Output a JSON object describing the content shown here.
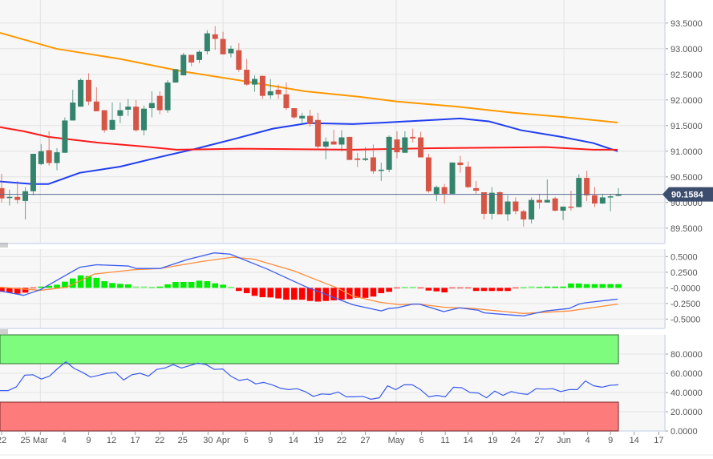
{
  "chart_data": [
    {
      "type": "candlestick",
      "title": "",
      "ylabel": "",
      "ylim": [
        89.2,
        93.95
      ],
      "y_ticks": [
        "93.5000",
        "93.0000",
        "92.5000",
        "92.0000",
        "91.5000",
        "91.0000",
        "90.5000",
        "90.0000",
        "89.5000"
      ],
      "y_tick_values": [
        93.5,
        93.0,
        92.5,
        92.0,
        91.5,
        91.0,
        90.5,
        90.0,
        89.5
      ],
      "last_price": 90.1584,
      "last_price_label": "90.1584",
      "colors": {
        "up": "#34836c",
        "down": "#d65646",
        "last_price": "#3d4d6e",
        "ma_fast": "#1f3df0",
        "ma_mid": "#ff1a1a",
        "ma_slow": "#ff9800"
      },
      "candles_ohlc": [
        [
          90.28,
          90.56,
          90.0,
          90.08
        ],
        [
          90.1,
          90.25,
          89.94,
          90.11
        ],
        [
          90.11,
          90.42,
          89.98,
          90.05
        ],
        [
          90.03,
          90.3,
          89.67,
          90.22
        ],
        [
          90.22,
          90.95,
          90.14,
          90.95
        ],
        [
          90.75,
          91.14,
          90.73,
          91.0
        ],
        [
          91.02,
          91.39,
          90.72,
          90.77
        ],
        [
          90.77,
          91.06,
          90.63,
          90.98
        ],
        [
          90.97,
          91.66,
          90.97,
          91.6
        ],
        [
          91.6,
          92.2,
          91.6,
          91.95
        ],
        [
          91.87,
          92.42,
          91.87,
          92.39
        ],
        [
          92.39,
          92.52,
          91.9,
          91.97
        ],
        [
          91.97,
          92.25,
          91.78,
          91.78
        ],
        [
          91.8,
          91.8,
          91.36,
          91.41
        ],
        [
          91.42,
          91.95,
          91.41,
          91.61
        ],
        [
          91.69,
          91.95,
          91.55,
          91.8
        ],
        [
          91.81,
          92.02,
          91.69,
          91.87
        ],
        [
          91.87,
          92.0,
          91.38,
          91.41
        ],
        [
          91.41,
          91.89,
          91.31,
          91.83
        ],
        [
          91.84,
          92.17,
          91.66,
          91.94
        ],
        [
          92.08,
          92.17,
          91.72,
          91.8
        ],
        [
          91.8,
          92.39,
          91.75,
          92.34
        ],
        [
          92.34,
          92.6,
          92.34,
          92.6
        ],
        [
          92.48,
          92.92,
          92.48,
          92.88
        ],
        [
          92.88,
          92.88,
          92.66,
          92.73
        ],
        [
          92.78,
          92.97,
          92.72,
          92.94
        ],
        [
          92.95,
          93.36,
          92.89,
          93.3
        ],
        [
          93.28,
          93.44,
          92.98,
          93.19
        ],
        [
          93.19,
          93.33,
          92.89,
          92.89
        ],
        [
          92.91,
          93.06,
          92.83,
          93.0
        ],
        [
          92.97,
          93.11,
          92.55,
          92.59
        ],
        [
          92.59,
          92.8,
          92.28,
          92.3
        ],
        [
          92.3,
          92.48,
          92.16,
          92.41
        ],
        [
          92.47,
          92.47,
          92.02,
          92.08
        ],
        [
          92.09,
          92.41,
          92.02,
          92.17
        ],
        [
          92.2,
          92.3,
          92.02,
          92.11
        ],
        [
          92.11,
          92.34,
          91.8,
          91.84
        ],
        [
          91.84,
          91.84,
          91.63,
          91.66
        ],
        [
          91.64,
          91.75,
          91.52,
          91.69
        ],
        [
          91.69,
          91.81,
          91.48,
          91.53
        ],
        [
          91.61,
          91.75,
          91.03,
          91.09
        ],
        [
          91.09,
          91.27,
          90.84,
          91.19
        ],
        [
          91.19,
          91.42,
          91.13,
          91.13
        ],
        [
          91.13,
          91.41,
          91.0,
          91.27
        ],
        [
          91.28,
          91.28,
          90.83,
          90.83
        ],
        [
          90.86,
          90.97,
          90.69,
          90.83
        ],
        [
          90.83,
          91.08,
          90.81,
          90.86
        ],
        [
          90.88,
          91.13,
          90.56,
          90.61
        ],
        [
          90.62,
          90.78,
          90.42,
          90.64
        ],
        [
          90.64,
          91.31,
          90.59,
          91.28
        ],
        [
          91.23,
          91.39,
          90.86,
          90.98
        ],
        [
          90.97,
          91.39,
          90.97,
          91.27
        ],
        [
          91.28,
          91.44,
          91.17,
          91.25
        ],
        [
          91.27,
          91.38,
          90.88,
          90.88
        ],
        [
          90.88,
          90.95,
          90.19,
          90.22
        ],
        [
          90.16,
          90.33,
          90.03,
          90.3
        ],
        [
          90.3,
          90.36,
          89.98,
          90.17
        ],
        [
          90.17,
          90.78,
          90.16,
          90.78
        ],
        [
          90.78,
          90.91,
          90.58,
          90.73
        ],
        [
          90.7,
          90.8,
          90.28,
          90.3
        ],
        [
          90.28,
          90.42,
          90.16,
          90.23
        ],
        [
          90.2,
          90.2,
          89.67,
          89.78
        ],
        [
          89.78,
          90.3,
          89.67,
          90.19
        ],
        [
          90.2,
          90.22,
          89.77,
          89.77
        ],
        [
          89.77,
          90.14,
          89.64,
          90.02
        ],
        [
          90.02,
          90.1,
          89.77,
          89.83
        ],
        [
          89.83,
          89.86,
          89.53,
          89.67
        ],
        [
          89.67,
          90.1,
          89.59,
          90.05
        ],
        [
          90.05,
          90.17,
          89.88,
          90.0
        ],
        [
          90.0,
          90.45,
          90.0,
          90.05
        ],
        [
          90.08,
          90.11,
          89.83,
          89.84
        ],
        [
          89.84,
          89.92,
          89.66,
          89.92
        ],
        [
          89.92,
          90.23,
          89.84,
          89.91
        ],
        [
          89.91,
          90.55,
          89.91,
          90.48
        ],
        [
          90.48,
          90.62,
          90.03,
          90.14
        ],
        [
          90.14,
          90.3,
          89.91,
          89.98
        ],
        [
          89.98,
          90.17,
          89.97,
          90.1
        ],
        [
          90.11,
          90.17,
          89.83,
          90.12
        ],
        [
          90.13,
          90.28,
          90.12,
          90.16
        ]
      ],
      "moving_averages": [
        {
          "name": "ma-slow",
          "color": "#ff9800",
          "points": [
            [
              -0.2,
              93.31
            ],
            [
              6.9,
              93.0
            ],
            [
              15,
              92.8
            ],
            [
              22.8,
              92.56
            ],
            [
              30.2,
              92.38
            ],
            [
              38.3,
              92.17
            ],
            [
              45.4,
              92.06
            ],
            [
              50,
              91.97
            ],
            [
              57.6,
              91.87
            ],
            [
              64.7,
              91.75
            ],
            [
              70.8,
              91.67
            ],
            [
              77.9,
              91.56
            ]
          ]
        },
        {
          "name": "ma-fast",
          "color": "#1f3df0",
          "points": [
            [
              -0.2,
              90.41
            ],
            [
              3.9,
              90.36
            ],
            [
              5.9,
              90.36
            ],
            [
              9.9,
              90.58
            ],
            [
              15,
              90.7
            ],
            [
              20.1,
              90.89
            ],
            [
              24.6,
              91.05
            ],
            [
              29.2,
              91.23
            ],
            [
              34.3,
              91.44
            ],
            [
              38.8,
              91.55
            ],
            [
              44.4,
              91.53
            ],
            [
              48.5,
              91.56
            ],
            [
              54.6,
              91.61
            ],
            [
              58,
              91.64
            ],
            [
              61.7,
              91.58
            ],
            [
              65.7,
              91.41
            ],
            [
              70.8,
              91.28
            ],
            [
              74.8,
              91.16
            ],
            [
              77.9,
              91.0
            ]
          ]
        },
        {
          "name": "ma-mid",
          "color": "#ff1a1a",
          "points": [
            [
              -0.2,
              91.47
            ],
            [
              2.8,
              91.39
            ],
            [
              5.9,
              91.28
            ],
            [
              12,
              91.17
            ],
            [
              18.1,
              91.09
            ],
            [
              22.1,
              91.03
            ],
            [
              30.2,
              91.05
            ],
            [
              44.4,
              91.03
            ],
            [
              54.6,
              91.06
            ],
            [
              68.8,
              91.08
            ],
            [
              74.8,
              91.03
            ],
            [
              77.9,
              91.03
            ]
          ]
        }
      ]
    },
    {
      "type": "bar",
      "name": "MACD",
      "ylim": [
        -0.65,
        0.62
      ],
      "y_ticks": [
        "0.5000",
        "0.2500",
        "-0.0000",
        "-0.2500",
        "-0.5000"
      ],
      "y_tick_values": [
        0.5,
        0.25,
        0,
        -0.25,
        -0.5
      ],
      "histogram": [
        -0.064,
        -0.077,
        -0.094,
        -0.077,
        -0.01,
        0.02,
        0.034,
        0.05,
        0.098,
        0.15,
        0.2,
        0.19,
        0.16,
        0.107,
        0.077,
        0.064,
        0.056,
        0.01,
        0.01,
        0.005,
        0.02,
        0.056,
        0.094,
        0.094,
        0.094,
        0.115,
        0.107,
        0.073,
        0.05,
        0.005,
        -0.05,
        -0.085,
        -0.128,
        -0.15,
        -0.154,
        -0.17,
        -0.19,
        -0.19,
        -0.19,
        -0.21,
        -0.22,
        -0.21,
        -0.2,
        -0.19,
        -0.18,
        -0.16,
        -0.16,
        -0.14,
        -0.085,
        -0.064,
        -0.01,
        0.005,
        0.005,
        -0.01,
        -0.043,
        -0.056,
        -0.073,
        -0.01,
        -0.01,
        -0.01,
        -0.05,
        -0.05,
        -0.05,
        -0.05,
        -0.05,
        -0.01,
        0.003,
        0.01,
        0.015,
        0.02,
        0.02,
        0.02,
        0.07,
        0.07,
        0.06,
        0.06,
        0.06,
        0.06,
        0.06
      ],
      "macd_line": [
        [
          -0.2,
          -0.05
        ],
        [
          2.8,
          -0.12
        ],
        [
          4.9,
          -0.03
        ],
        [
          9.9,
          0.33
        ],
        [
          12,
          0.37
        ],
        [
          16,
          0.35
        ],
        [
          17,
          0.31
        ],
        [
          20.1,
          0.31
        ],
        [
          23.4,
          0.45
        ],
        [
          26.9,
          0.56
        ],
        [
          28.9,
          0.54
        ],
        [
          33.6,
          0.3
        ],
        [
          38.6,
          0.01
        ],
        [
          44.4,
          -0.27
        ],
        [
          48,
          -0.37
        ],
        [
          49,
          -0.33
        ],
        [
          50,
          -0.32
        ],
        [
          52,
          -0.26
        ],
        [
          52.8,
          -0.26
        ],
        [
          55.9,
          -0.38
        ],
        [
          57.9,
          -0.32
        ],
        [
          60.3,
          -0.36
        ],
        [
          61,
          -0.4
        ],
        [
          62.9,
          -0.42
        ],
        [
          66,
          -0.45
        ],
        [
          68.8,
          -0.37
        ],
        [
          71.8,
          -0.33
        ],
        [
          73,
          -0.26
        ],
        [
          73.8,
          -0.24
        ],
        [
          77.9,
          -0.18
        ]
      ],
      "signal_line": [
        [
          -0.2,
          0.01
        ],
        [
          4.9,
          -0.04
        ],
        [
          8.2,
          0.01
        ],
        [
          11.7,
          0.22
        ],
        [
          16.7,
          0.29
        ],
        [
          20.1,
          0.31
        ],
        [
          25.2,
          0.42
        ],
        [
          29.2,
          0.49
        ],
        [
          31.9,
          0.46
        ],
        [
          37,
          0.27
        ],
        [
          42.4,
          0.0
        ],
        [
          44.4,
          -0.13
        ],
        [
          47.8,
          -0.23
        ],
        [
          50.3,
          -0.27
        ],
        [
          52.8,
          -0.26
        ],
        [
          55.9,
          -0.31
        ],
        [
          59.6,
          -0.33
        ],
        [
          66,
          -0.41
        ],
        [
          71.8,
          -0.37
        ],
        [
          77.9,
          -0.26
        ]
      ],
      "colors": {
        "positive": "#00ee00",
        "negative": "#ff0000",
        "macd": "#3a5cf0",
        "signal": "#ff8c3a"
      }
    },
    {
      "type": "line",
      "name": "RSI",
      "ylim": [
        0,
        100
      ],
      "y_ticks": [
        "80.0000",
        "60.0000",
        "40.0000",
        "20.0000",
        "0.0000"
      ],
      "y_tick_values": [
        80,
        60,
        40,
        20,
        0
      ],
      "overbought": [
        70,
        100
      ],
      "oversold": [
        0,
        30
      ],
      "values": [
        42,
        42,
        46,
        58,
        58.5,
        54,
        57,
        65,
        72,
        65,
        61,
        56,
        58,
        60,
        61,
        53,
        58.5,
        60,
        57,
        64,
        65.5,
        69,
        65.5,
        68,
        70.5,
        69,
        64,
        64.5,
        57,
        52.5,
        54,
        49,
        50.5,
        48,
        44.5,
        43,
        44,
        41,
        36,
        38.5,
        38,
        40.5,
        35.5,
        35.5,
        36,
        33,
        34.5,
        47,
        43,
        48,
        48,
        43,
        35.5,
        37,
        35.5,
        45.5,
        45,
        40,
        39.5,
        34.5,
        41.5,
        37,
        41,
        39,
        38,
        44,
        43.5,
        44,
        41,
        43,
        43,
        52,
        47,
        45.5,
        47.5,
        48
      ],
      "colors": {
        "line": "#3a5cf0",
        "overbought": "#7dfc7d",
        "oversold": "#fd7b7b"
      }
    }
  ],
  "x_axis": {
    "labels": [
      {
        "text": "22",
        "day": 0
      },
      {
        "text": "25",
        "day": 3
      },
      {
        "text": "Mar",
        "day": 4.9
      },
      {
        "text": "4",
        "day": 7.9
      },
      {
        "text": "9",
        "day": 11
      },
      {
        "text": "12",
        "day": 13.9
      },
      {
        "text": "17",
        "day": 16.9
      },
      {
        "text": "22",
        "day": 20
      },
      {
        "text": "25",
        "day": 22.9
      },
      {
        "text": "30",
        "day": 26.1
      },
      {
        "text": "Apr",
        "day": 28
      },
      {
        "text": "6",
        "day": 30.9
      },
      {
        "text": "9",
        "day": 34
      },
      {
        "text": "14",
        "day": 36.9
      },
      {
        "text": "19",
        "day": 40.1
      },
      {
        "text": "22",
        "day": 43
      },
      {
        "text": "27",
        "day": 46
      },
      {
        "text": "May",
        "day": 49.9
      },
      {
        "text": "6",
        "day": 53.1
      },
      {
        "text": "11",
        "day": 56.1
      },
      {
        "text": "14",
        "day": 59
      },
      {
        "text": "19",
        "day": 62.1
      },
      {
        "text": "24",
        "day": 65
      },
      {
        "text": "27",
        "day": 68
      },
      {
        "text": "Jun",
        "day": 71.1
      },
      {
        "text": "4",
        "day": 74.1
      },
      {
        "text": "9",
        "day": 77
      },
      {
        "text": "14",
        "day": 80
      },
      {
        "text": "17",
        "day": 83.1
      }
    ],
    "month_gridlines": [
      4.9,
      28,
      49.9,
      71.1
    ]
  }
}
